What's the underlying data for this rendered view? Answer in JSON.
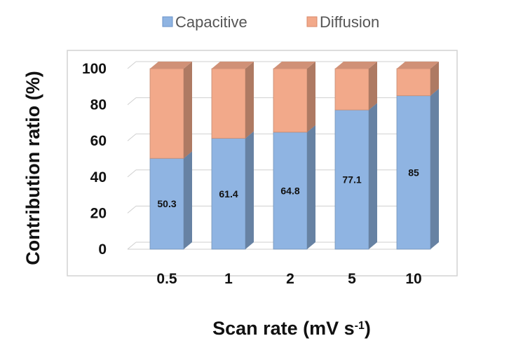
{
  "chart_data": {
    "type": "bar",
    "stacked": true,
    "style": "3d",
    "categories": [
      "0.5",
      "1",
      "2",
      "5",
      "10"
    ],
    "series": [
      {
        "name": "Capacitive",
        "values": [
          50.3,
          61.4,
          64.8,
          77.1,
          85
        ],
        "color": "#8fb4e2",
        "labels": [
          "50.3",
          "61.4",
          "64.8",
          "77.1",
          "85"
        ]
      },
      {
        "name": "Diffusion",
        "values": [
          49.7,
          38.6,
          35.2,
          22.9,
          15
        ],
        "color": "#f2a98a"
      }
    ],
    "xlabel_main": "Scan rate (mV s",
    "xlabel_sup": "-1",
    "xlabel_end": ")",
    "ylabel": "Contribution ratio (%)",
    "ylim": [
      0,
      100
    ],
    "yticks": [
      "0",
      "20",
      "40",
      "60",
      "80",
      "100"
    ],
    "grid": true,
    "legend_position": "top-center"
  }
}
